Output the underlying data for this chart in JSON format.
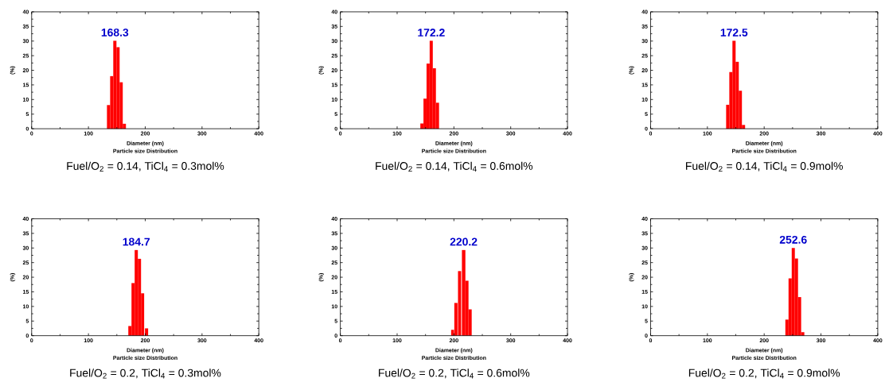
{
  "chart_data": [
    {
      "type": "histogram",
      "title": "Fuel/O$_{2}$ = 0.14,  TiCl$_{4}$ = 0.3mol%",
      "subtitle": "Particle size Distribution",
      "xlabel": "Diameter (nm)",
      "ylabel": "(%)",
      "annotations": [
        "168.3"
      ],
      "color": "#ff0000",
      "bins": [
        132.6,
        138.2,
        143.7,
        149.3,
        154.9,
        160.4,
        166
      ],
      "values": [
        8.1,
        18,
        30.1,
        27.9,
        15.9,
        1.7
      ],
      "xlim": [
        0,
        400
      ],
      "xticks": [
        0,
        100,
        200,
        300,
        400
      ],
      "ylim": [
        0,
        40
      ],
      "yticks": [
        0,
        5,
        10,
        15,
        20,
        25,
        30,
        35,
        40
      ]
    },
    {
      "type": "histogram",
      "title": "Fuel/O$_{2}$ = 0.14,  TiCl$_{4}$ = 0.6mol%",
      "subtitle": "Particle size Distribution",
      "xlabel": "Diameter (nm)",
      "ylabel": "(%)",
      "annotations": [
        "172.2"
      ],
      "color": "#ff0000",
      "bins": [
        140.9,
        146.4,
        151.8,
        157.3,
        162.8,
        168.3,
        173.8
      ],
      "values": [
        1.8,
        10.3,
        22.3,
        30.1,
        20.7,
        8.9
      ],
      "xlim": [
        0,
        400
      ],
      "xticks": [
        0,
        100,
        200,
        300,
        400
      ],
      "ylim": [
        0,
        40
      ],
      "yticks": [
        0,
        5,
        10,
        15,
        20,
        25,
        30,
        35,
        40
      ]
    },
    {
      "type": "histogram",
      "title": "Fuel/O$_{2}$ = 0.14,  TiCl$_{4}$ = 0.9mol%",
      "subtitle": "Particle size Distribution",
      "xlabel": "Diameter (nm)",
      "ylabel": "(%)",
      "annotations": [
        "172.5"
      ],
      "color": "#ff0000",
      "bins": [
        133,
        138.6,
        144.1,
        149.7,
        155.3,
        160.8,
        166.4
      ],
      "values": [
        8.2,
        19.4,
        30.1,
        22.9,
        13,
        1.3
      ],
      "xlim": [
        0,
        400
      ],
      "xticks": [
        0,
        100,
        200,
        300,
        400
      ],
      "ylim": [
        0,
        40
      ],
      "yticks": [
        0,
        5,
        10,
        15,
        20,
        25,
        30,
        35,
        40
      ]
    },
    {
      "type": "histogram",
      "title": "Fuel/O$_{2}$ = 0.2,  TiCl$_{4}$ = 0.3mol%",
      "subtitle": "Particle size Distribution",
      "xlabel": "Diameter (nm)",
      "ylabel": "(%)",
      "annotations": [
        "184.7"
      ],
      "color": "#ff0000",
      "bins": [
        170.2,
        175.8,
        181.4,
        187,
        192.6,
        198.1,
        199.5,
        205.1
      ],
      "values": [
        3.3,
        18,
        29.3,
        26.3,
        14.5,
        null,
        2.5
      ],
      "xlim": [
        0,
        400
      ],
      "xticks": [
        0,
        100,
        200,
        300,
        400
      ],
      "ylim": [
        0,
        40
      ],
      "yticks": [
        0,
        5,
        10,
        15,
        20,
        25,
        30,
        35,
        40
      ]
    },
    {
      "type": "histogram",
      "title": "Fuel/O$_{2}$ = 0.2,  TiCl$_{4}$ = 0.6mol%",
      "subtitle": "Particle size Distribution",
      "xlabel": "Diameter (nm)",
      "ylabel": "(%)",
      "annotations": [
        "220.2"
      ],
      "color": "#ff0000",
      "bins": [
        195.1,
        200.2,
        200.7,
        206.3,
        207.2,
        212.7,
        214.1,
        220.2,
        225.7,
        231.3
      ],
      "values": [
        2,
        null,
        11.2,
        null,
        22.1,
        null,
        29.3,
        18.8,
        9
      ],
      "xlim": [
        0,
        400
      ],
      "xticks": [
        0,
        100,
        200,
        300,
        400
      ],
      "ylim": [
        0,
        40
      ],
      "yticks": [
        0,
        5,
        10,
        15,
        20,
        25,
        30,
        35,
        40
      ]
    },
    {
      "type": "histogram",
      "title": "Fuel/O$_{2}$ = 0.2,  TiCl$_{4}$ = 0.9mol%",
      "subtitle": "Particle size Distribution",
      "xlabel": "Diameter (nm)",
      "ylabel": "(%)",
      "annotations": [
        "252.6"
      ],
      "color": "#ff0000",
      "bins": [
        237.3,
        242.9,
        248.5,
        254,
        259.6,
        265.1,
        270.7
      ],
      "values": [
        5.5,
        19.6,
        30,
        26.4,
        13.2,
        1.2
      ],
      "xlim": [
        0,
        400
      ],
      "xticks": [
        0,
        100,
        200,
        300,
        400
      ],
      "ylim": [
        0,
        40
      ],
      "yticks": [
        0,
        5,
        10,
        15,
        20,
        25,
        30,
        35,
        40
      ]
    }
  ]
}
